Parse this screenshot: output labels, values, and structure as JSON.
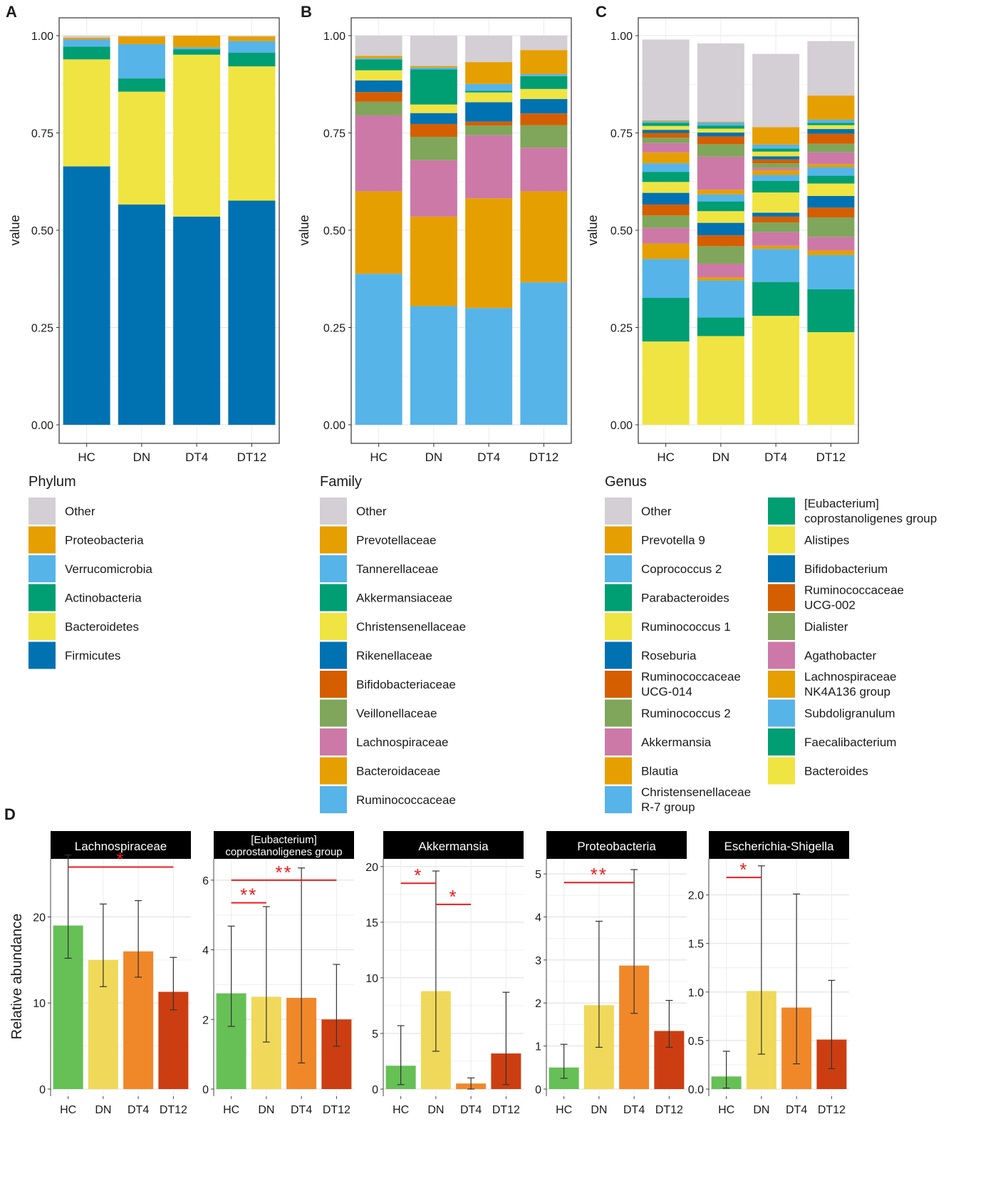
{
  "colors": {
    "Other": "#d3cfd4",
    "Proteobacteria": "#e69f00",
    "Verrucomicrobia": "#56b4e9",
    "Actinobacteria": "#009e73",
    "Bacteroidetes": "#f0e442",
    "Firmicutes": "#0072b2",
    "Prevotellaceae": "#e69f00",
    "Tannerellaceae": "#56b4e9",
    "Akkermansiaceae": "#009e73",
    "Christensenellaceae": "#f0e442",
    "Rikenellaceae": "#0072b2",
    "Bifidobacteriaceae": "#d55e00",
    "Veillonellaceae": "#7fa65a",
    "Lachnospiraceae": "#cc79a7",
    "Bacteroidaceae": "#e69f00",
    "Ruminococcaceae": "#56b4e9",
    "Prevotella 9": "#e69f00",
    "Coprococcus 2": "#56b4e9",
    "Parabacteroides": "#009e73",
    "Ruminococcus 1": "#f0e442",
    "Roseburia": "#0072b2",
    "Ruminococcaceae UCG-014": "#d55e00",
    "Ruminococcus 2": "#7fa65a",
    "Akkermansia": "#cc79a7",
    "Blautia": "#e69f00",
    "Christensenellaceae R-7 group": "#56b4e9",
    "[Eubacterium] coprostanoligenes group": "#009e73",
    "Alistipes": "#f0e442",
    "Bifidobacterium": "#0072b2",
    "Ruminococcaceae UCG-002": "#d55e00",
    "Dialister": "#7fa65a",
    "Agathobacter": "#cc79a7",
    "Lachnospiraceae NK4A136 group": "#e69f00",
    "Subdoligranulum": "#56b4e9",
    "Faecalibacterium": "#009e73",
    "Bacteroides": "#f0e442",
    "group_HC": "#66c055",
    "group_DN": "#f0d95a",
    "group_DT4": "#f0882a",
    "group_DT12": "#cc3e12",
    "significance": "#ee1c1c"
  },
  "chart_data": [
    {
      "panel": "A",
      "type": "bar",
      "stacked": true,
      "ylabel": "value",
      "ylim": [
        0,
        1
      ],
      "yticks": [
        "0.00",
        "0.25",
        "0.50",
        "0.75",
        "1.00"
      ],
      "categories": [
        "HC",
        "DN",
        "DT4",
        "DT12"
      ],
      "legend_title": "Phylum",
      "legend": [
        "Other",
        "Proteobacteria",
        "Verrucomicrobia",
        "Actinobacteria",
        "Bacteroidetes",
        "Firmicutes"
      ],
      "stack_order": [
        "Firmicutes",
        "Bacteroidetes",
        "Actinobacteria",
        "Verrucomicrobia",
        "Proteobacteria",
        "Other"
      ],
      "series": [
        {
          "name": "Firmicutes",
          "values": [
            0.664,
            0.566,
            0.535,
            0.576
          ]
        },
        {
          "name": "Bacteroidetes",
          "values": [
            0.275,
            0.29,
            0.416,
            0.345
          ]
        },
        {
          "name": "Actinobacteria",
          "values": [
            0.033,
            0.034,
            0.014,
            0.035
          ]
        },
        {
          "name": "Verrucomicrobia",
          "values": [
            0.018,
            0.088,
            0.005,
            0.03
          ]
        },
        {
          "name": "Proteobacteria",
          "values": [
            0.005,
            0.02,
            0.03,
            0.012
          ]
        },
        {
          "name": "Other",
          "values": [
            0.005,
            0.002,
            0.0,
            0.002
          ]
        }
      ]
    },
    {
      "panel": "B",
      "type": "bar",
      "stacked": true,
      "ylabel": "value",
      "ylim": [
        0,
        1
      ],
      "yticks": [
        "0.00",
        "0.25",
        "0.50",
        "0.75",
        "1.00"
      ],
      "categories": [
        "HC",
        "DN",
        "DT4",
        "DT12"
      ],
      "legend_title": "Family",
      "legend": [
        "Other",
        "Prevotellaceae",
        "Tannerellaceae",
        "Akkermansiaceae",
        "Christensenellaceae",
        "Rikenellaceae",
        "Bifidobacteriaceae",
        "Veillonellaceae",
        "Lachnospiraceae",
        "Bacteroidaceae",
        "Ruminococcaceae"
      ],
      "stack_order": [
        "Ruminococcaceae",
        "Bacteroidaceae",
        "Lachnospiraceae",
        "Veillonellaceae",
        "Bifidobacteriaceae",
        "Rikenellaceae",
        "Christensenellaceae",
        "Akkermansiaceae",
        "Tannerellaceae",
        "Prevotellaceae",
        "Other"
      ],
      "series": [
        {
          "name": "Ruminococcaceae",
          "values": [
            0.388,
            0.305,
            0.3,
            0.366
          ]
        },
        {
          "name": "Bacteroidaceae",
          "values": [
            0.212,
            0.23,
            0.282,
            0.234
          ]
        },
        {
          "name": "Lachnospiraceae",
          "values": [
            0.195,
            0.145,
            0.162,
            0.112
          ]
        },
        {
          "name": "Veillonellaceae",
          "values": [
            0.035,
            0.06,
            0.025,
            0.058
          ]
        },
        {
          "name": "Bifidobacteriaceae",
          "values": [
            0.025,
            0.033,
            0.01,
            0.03
          ]
        },
        {
          "name": "Rikenellaceae",
          "values": [
            0.03,
            0.028,
            0.05,
            0.037
          ]
        },
        {
          "name": "Christensenellaceae",
          "values": [
            0.026,
            0.022,
            0.025,
            0.026
          ]
        },
        {
          "name": "Akkermansiaceae",
          "values": [
            0.028,
            0.09,
            0.004,
            0.033
          ]
        },
        {
          "name": "Tannerellaceae",
          "values": [
            0.003,
            0.005,
            0.018,
            0.005
          ]
        },
        {
          "name": "Prevotellaceae",
          "values": [
            0.006,
            0.004,
            0.056,
            0.062
          ]
        },
        {
          "name": "Other",
          "values": [
            0.052,
            0.078,
            0.068,
            0.037
          ]
        }
      ]
    },
    {
      "panel": "C",
      "type": "bar",
      "stacked": true,
      "ylabel": "value",
      "ylim": [
        0,
        1
      ],
      "yticks": [
        "0.00",
        "0.25",
        "0.50",
        "0.75",
        "1.00"
      ],
      "categories": [
        "HC",
        "DN",
        "DT4",
        "DT12"
      ],
      "legend_title": "Genus",
      "legend": [
        "Other",
        "Prevotella 9",
        "Coprococcus 2",
        "Parabacteroides",
        "Ruminococcus 1",
        "Roseburia",
        "Ruminococcaceae UCG-014",
        "Ruminococcus 2",
        "Akkermansia",
        "Blautia",
        "Christensenellaceae R-7 group",
        "[Eubacterium] coprostanoligenes group",
        "Alistipes",
        "Bifidobacterium",
        "Ruminococcaceae UCG-002",
        "Dialister",
        "Agathobacter",
        "Lachnospiraceae NK4A136 group",
        "Subdoligranulum",
        "Faecalibacterium",
        "Bacteroides"
      ],
      "stack_order": [
        "Bacteroides",
        "Faecalibacterium",
        "Subdoligranulum",
        "Lachnospiraceae NK4A136 group",
        "Agathobacter",
        "Dialister",
        "Ruminococcaceae UCG-002",
        "Bifidobacterium",
        "Alistipes",
        "[Eubacterium] coprostanoligenes group",
        "Christensenellaceae R-7 group",
        "Blautia",
        "Akkermansia",
        "Ruminococcus 2",
        "Ruminococcaceae UCG-014",
        "Roseburia",
        "Ruminococcus 1",
        "Parabacteroides",
        "Coprococcus 2",
        "Prevotella 9",
        "Other"
      ],
      "series": [
        {
          "name": "Bacteroides",
          "values": [
            0.214,
            0.228,
            0.28,
            0.238
          ]
        },
        {
          "name": "Faecalibacterium",
          "values": [
            0.112,
            0.048,
            0.087,
            0.11
          ]
        },
        {
          "name": "Subdoligranulum",
          "values": [
            0.1,
            0.095,
            0.085,
            0.088
          ]
        },
        {
          "name": "Lachnospiraceae NK4A136 group",
          "values": [
            0.04,
            0.008,
            0.008,
            0.012
          ]
        },
        {
          "name": "Agathobacter",
          "values": [
            0.04,
            0.035,
            0.035,
            0.035
          ]
        },
        {
          "name": "Dialister",
          "values": [
            0.032,
            0.045,
            0.025,
            0.05
          ]
        },
        {
          "name": "Ruminococcaceae UCG-002",
          "values": [
            0.028,
            0.028,
            0.015,
            0.025
          ]
        },
        {
          "name": "Bifidobacterium",
          "values": [
            0.03,
            0.032,
            0.01,
            0.03
          ]
        },
        {
          "name": "Alistipes",
          "values": [
            0.028,
            0.03,
            0.052,
            0.032
          ]
        },
        {
          "name": "[Eubacterium] coprostanoligenes group",
          "values": [
            0.026,
            0.025,
            0.03,
            0.02
          ]
        },
        {
          "name": "Christensenellaceae R-7 group",
          "values": [
            0.022,
            0.018,
            0.015,
            0.022
          ]
        },
        {
          "name": "Blautia",
          "values": [
            0.028,
            0.012,
            0.012,
            0.008
          ]
        },
        {
          "name": "Akkermansia",
          "values": [
            0.024,
            0.085,
            0.006,
            0.03
          ]
        },
        {
          "name": "Ruminococcus 2",
          "values": [
            0.014,
            0.032,
            0.012,
            0.022
          ]
        },
        {
          "name": "Ruminococcaceae UCG-014",
          "values": [
            0.012,
            0.02,
            0.01,
            0.026
          ]
        },
        {
          "name": "Roseburia",
          "values": [
            0.008,
            0.01,
            0.008,
            0.012
          ]
        },
        {
          "name": "Ruminococcus 1",
          "values": [
            0.01,
            0.01,
            0.012,
            0.01
          ]
        },
        {
          "name": "Parabacteroides",
          "values": [
            0.008,
            0.008,
            0.008,
            0.006
          ]
        },
        {
          "name": "Coprococcus 2",
          "values": [
            0.004,
            0.008,
            0.01,
            0.008
          ]
        },
        {
          "name": "Prevotella 9",
          "values": [
            0.002,
            0.002,
            0.045,
            0.062
          ]
        },
        {
          "name": "Other",
          "values": [
            0.208,
            0.201,
            0.188,
            0.14
          ]
        }
      ]
    },
    {
      "panel": "D",
      "type": "bar",
      "ylabel": "Relative abundance",
      "categories": [
        "HC",
        "DN",
        "DT4",
        "DT12"
      ],
      "facets": [
        {
          "title": [
            "Lachnospiraceae"
          ],
          "ylim": [
            0,
            26.5
          ],
          "yticks": [
            0,
            10,
            20
          ],
          "ytick_labels": [
            "0",
            "10",
            "20"
          ],
          "values": [
            19.0,
            15.0,
            16.0,
            11.3
          ],
          "err_low": [
            15.2,
            11.9,
            13.0,
            9.2
          ],
          "err_high": [
            27.2,
            21.5,
            21.9,
            15.3
          ],
          "sig": [
            {
              "from": 0,
              "to": 3,
              "y": 25.8,
              "label": "*"
            }
          ]
        },
        {
          "title": [
            "[Eubacterium]",
            "coprostanoligenes group"
          ],
          "ylim": [
            0,
            6.55
          ],
          "yticks": [
            0,
            2,
            4,
            6
          ],
          "ytick_labels": [
            "0",
            "2",
            "4",
            "6"
          ],
          "values": [
            2.75,
            2.65,
            2.62,
            2.0
          ],
          "err_low": [
            1.8,
            1.35,
            0.75,
            1.23
          ],
          "err_high": [
            4.68,
            5.24,
            6.35,
            3.58
          ],
          "sig": [
            {
              "from": 0,
              "to": 1,
              "y": 5.35,
              "label": "**"
            },
            {
              "from": 0,
              "to": 3,
              "y": 6.0,
              "label": "**"
            }
          ]
        },
        {
          "title": [
            "Akkermansia"
          ],
          "ylim": [
            0,
            20.5
          ],
          "yticks": [
            0,
            5,
            10,
            15,
            20
          ],
          "ytick_labels": [
            "0",
            "5",
            "10",
            "15",
            "20"
          ],
          "values": [
            2.1,
            8.8,
            0.5,
            3.2
          ],
          "err_low": [
            0.4,
            3.4,
            0.0,
            0.4
          ],
          "err_high": [
            5.7,
            19.6,
            1.0,
            8.7
          ],
          "sig": [
            {
              "from": 0,
              "to": 1,
              "y": 18.5,
              "label": "*"
            },
            {
              "from": 1,
              "to": 2,
              "y": 16.6,
              "label": "*"
            }
          ]
        },
        {
          "title": [
            "Proteobacteria"
          ],
          "ylim": [
            0,
            5.3
          ],
          "yticks": [
            0,
            1,
            2,
            3,
            4,
            5
          ],
          "ytick_labels": [
            "0",
            "1",
            "2",
            "3",
            "4",
            "5"
          ],
          "values": [
            0.5,
            1.95,
            2.87,
            1.35
          ],
          "err_low": [
            0.25,
            0.97,
            1.76,
            0.97
          ],
          "err_high": [
            1.04,
            3.9,
            5.1,
            2.06
          ],
          "sig": [
            {
              "from": 0,
              "to": 2,
              "y": 4.8,
              "label": "**"
            }
          ]
        },
        {
          "title": [
            "Escherichia-Shigella"
          ],
          "ylim": [
            0,
            2.35
          ],
          "yticks": [
            0,
            0.5,
            1,
            1.5,
            2
          ],
          "ytick_labels": [
            "0.0",
            "0.5",
            "1.0",
            "1.5",
            "2.0"
          ],
          "values": [
            0.13,
            1.01,
            0.84,
            0.51
          ],
          "err_low": [
            0.01,
            0.36,
            0.26,
            0.21
          ],
          "err_high": [
            0.39,
            2.3,
            2.01,
            1.12
          ],
          "sig": [
            {
              "from": 0,
              "to": 1,
              "y": 2.18,
              "label": "*"
            }
          ]
        }
      ]
    }
  ]
}
